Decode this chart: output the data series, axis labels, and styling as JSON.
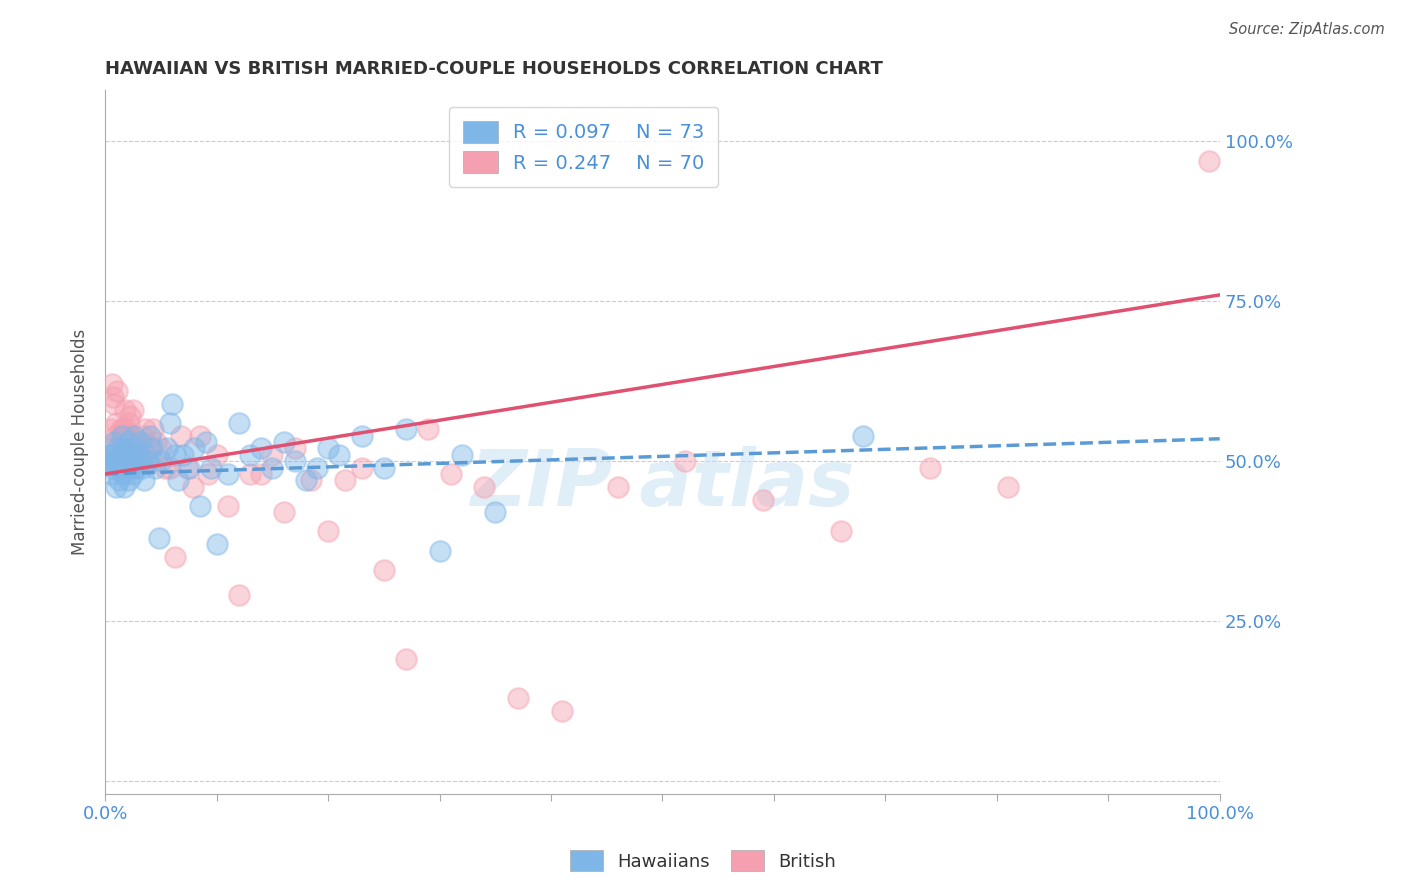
{
  "title": "HAWAIIAN VS BRITISH MARRIED-COUPLE HOUSEHOLDS CORRELATION CHART",
  "source": "Source: ZipAtlas.com",
  "ylabel": "Married-couple Households",
  "xlim": [
    0,
    1
  ],
  "ylim": [
    -0.02,
    1.08
  ],
  "ytick_positions": [
    0.0,
    0.25,
    0.5,
    0.75,
    1.0
  ],
  "ytick_labels_right": [
    "",
    "25.0%",
    "50.0%",
    "75.0%",
    "100.0%"
  ],
  "legend_r1": "R = 0.097",
  "legend_n1": "N = 73",
  "legend_r2": "R = 0.247",
  "legend_n2": "N = 70",
  "hawaiian_color": "#7EB6E8",
  "british_color": "#F5A0B0",
  "trend_hawaiian_color": "#5B9BD5",
  "trend_british_color": "#E05070",
  "grid_color": "#cccccc",
  "title_color": "#333333",
  "axis_label_color": "#4A90D9",
  "background_color": "#ffffff",
  "hawaiians_x": [
    0.002,
    0.003,
    0.004,
    0.005,
    0.006,
    0.007,
    0.008,
    0.009,
    0.01,
    0.01,
    0.011,
    0.012,
    0.013,
    0.014,
    0.015,
    0.015,
    0.016,
    0.016,
    0.017,
    0.018,
    0.018,
    0.019,
    0.02,
    0.021,
    0.022,
    0.023,
    0.024,
    0.025,
    0.025,
    0.026,
    0.027,
    0.028,
    0.03,
    0.031,
    0.033,
    0.035,
    0.037,
    0.038,
    0.04,
    0.042,
    0.045,
    0.048,
    0.05,
    0.055,
    0.058,
    0.06,
    0.063,
    0.065,
    0.07,
    0.075,
    0.08,
    0.085,
    0.09,
    0.095,
    0.1,
    0.11,
    0.12,
    0.13,
    0.14,
    0.15,
    0.16,
    0.17,
    0.18,
    0.19,
    0.2,
    0.21,
    0.23,
    0.25,
    0.27,
    0.3,
    0.32,
    0.35,
    0.68
  ],
  "hawaiians_y": [
    0.5,
    0.5,
    0.51,
    0.48,
    0.51,
    0.49,
    0.53,
    0.5,
    0.5,
    0.46,
    0.52,
    0.47,
    0.49,
    0.51,
    0.5,
    0.54,
    0.48,
    0.52,
    0.46,
    0.49,
    0.51,
    0.5,
    0.53,
    0.47,
    0.51,
    0.49,
    0.5,
    0.52,
    0.48,
    0.54,
    0.5,
    0.49,
    0.51,
    0.53,
    0.49,
    0.47,
    0.51,
    0.5,
    0.54,
    0.52,
    0.49,
    0.38,
    0.5,
    0.52,
    0.56,
    0.59,
    0.51,
    0.47,
    0.51,
    0.49,
    0.52,
    0.43,
    0.53,
    0.49,
    0.37,
    0.48,
    0.56,
    0.51,
    0.52,
    0.49,
    0.53,
    0.5,
    0.47,
    0.49,
    0.52,
    0.51,
    0.54,
    0.49,
    0.55,
    0.36,
    0.51,
    0.42,
    0.54
  ],
  "british_x": [
    0.002,
    0.003,
    0.004,
    0.005,
    0.006,
    0.007,
    0.008,
    0.009,
    0.01,
    0.011,
    0.012,
    0.013,
    0.014,
    0.015,
    0.016,
    0.017,
    0.018,
    0.019,
    0.02,
    0.021,
    0.022,
    0.023,
    0.024,
    0.025,
    0.026,
    0.027,
    0.028,
    0.03,
    0.032,
    0.034,
    0.036,
    0.038,
    0.04,
    0.043,
    0.046,
    0.05,
    0.054,
    0.058,
    0.063,
    0.068,
    0.073,
    0.079,
    0.085,
    0.092,
    0.1,
    0.11,
    0.12,
    0.13,
    0.14,
    0.15,
    0.16,
    0.17,
    0.185,
    0.2,
    0.215,
    0.23,
    0.25,
    0.27,
    0.29,
    0.31,
    0.34,
    0.37,
    0.41,
    0.46,
    0.52,
    0.59,
    0.66,
    0.74,
    0.81,
    0.99
  ],
  "british_y": [
    0.5,
    0.52,
    0.51,
    0.55,
    0.62,
    0.6,
    0.59,
    0.54,
    0.56,
    0.61,
    0.5,
    0.54,
    0.55,
    0.54,
    0.55,
    0.55,
    0.58,
    0.55,
    0.51,
    0.56,
    0.57,
    0.54,
    0.51,
    0.58,
    0.51,
    0.53,
    0.53,
    0.53,
    0.5,
    0.54,
    0.55,
    0.5,
    0.52,
    0.55,
    0.53,
    0.52,
    0.49,
    0.49,
    0.35,
    0.54,
    0.49,
    0.46,
    0.54,
    0.48,
    0.51,
    0.43,
    0.29,
    0.48,
    0.48,
    0.51,
    0.42,
    0.52,
    0.47,
    0.39,
    0.47,
    0.49,
    0.33,
    0.19,
    0.55,
    0.48,
    0.46,
    0.13,
    0.11,
    0.46,
    0.5,
    0.44,
    0.39,
    0.49,
    0.46,
    0.97
  ],
  "trend_h_start_y": 0.48,
  "trend_h_end_y": 0.535,
  "trend_b_start_y": 0.48,
  "trend_b_end_y": 0.76,
  "figsize": [
    14.06,
    8.92
  ],
  "dpi": 100
}
